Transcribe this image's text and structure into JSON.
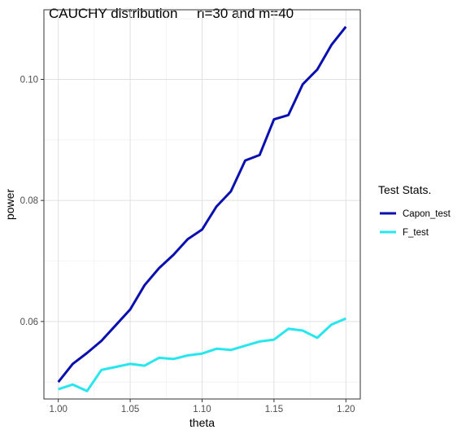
{
  "chart_data": {
    "type": "line",
    "title": "CAUCHY distribution     n=30 and m=40",
    "xlabel": "theta",
    "ylabel": "power",
    "xlim": [
      0.99,
      1.21
    ],
    "ylim": [
      0.0472,
      0.1115
    ],
    "x_ticks": [
      1.0,
      1.05,
      1.1,
      1.15,
      1.2
    ],
    "x_tick_labels": [
      "1.00",
      "1.05",
      "1.10",
      "1.15",
      "1.20"
    ],
    "y_ticks": [
      0.06,
      0.08,
      0.1
    ],
    "y_tick_labels": [
      "0.06",
      "0.08",
      "0.10"
    ],
    "grid": true,
    "legend": {
      "title": "Test Stats.",
      "placement": "right"
    },
    "x": [
      1.0,
      1.01,
      1.02,
      1.03,
      1.04,
      1.05,
      1.06,
      1.07,
      1.08,
      1.09,
      1.1,
      1.11,
      1.12,
      1.13,
      1.14,
      1.15,
      1.16,
      1.17,
      1.18,
      1.19,
      1.2
    ],
    "series": [
      {
        "name": "Capon_test",
        "color": "#0a10b0",
        "values": [
          0.05,
          0.053,
          0.0548,
          0.0568,
          0.0594,
          0.062,
          0.066,
          0.0688,
          0.071,
          0.0736,
          0.0752,
          0.079,
          0.0815,
          0.0866,
          0.0875,
          0.0934,
          0.0941,
          0.0992,
          0.1016,
          0.1057,
          0.1087
        ]
      },
      {
        "name": "F_test",
        "color": "#27e6ee",
        "values": [
          0.0488,
          0.0496,
          0.0485,
          0.052,
          0.0525,
          0.053,
          0.0527,
          0.054,
          0.0538,
          0.0544,
          0.0547,
          0.0555,
          0.0553,
          0.056,
          0.0567,
          0.057,
          0.0588,
          0.0585,
          0.0573,
          0.0595,
          0.0605
        ]
      }
    ]
  }
}
